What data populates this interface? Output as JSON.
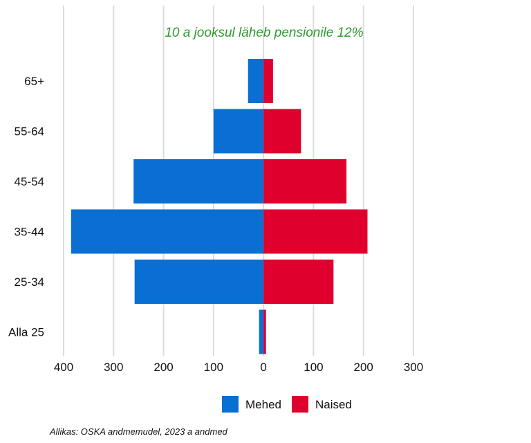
{
  "chart_data": {
    "type": "bar",
    "orientation": "horizontal",
    "layout": "population-pyramid",
    "subtitle": "10 a jooksul läheb pensionile 12%",
    "subtitle_color": "#2e9a2e",
    "categories": [
      "65+",
      "55-64",
      "45-54",
      "35-44",
      "25-34",
      "Alla 25"
    ],
    "series": [
      {
        "name": "Mehed",
        "color": "#0a6fd2",
        "values": [
          -31,
          -100,
          -260,
          -385,
          -258,
          -9
        ]
      },
      {
        "name": "Naised",
        "color": "#e0002d",
        "values": [
          19,
          75,
          166,
          208,
          140,
          5
        ]
      }
    ],
    "xlim": [
      -400,
      300
    ],
    "x_ticks": [
      -400,
      -300,
      -200,
      -100,
      0,
      100,
      200,
      300
    ],
    "x_tick_labels": [
      "400",
      "300",
      "200",
      "100",
      "0",
      "100",
      "200",
      "300"
    ],
    "grid": true,
    "legend_position": "bottom",
    "source": "Allikas: OSKA andmemudel, 2023 a andmed"
  }
}
